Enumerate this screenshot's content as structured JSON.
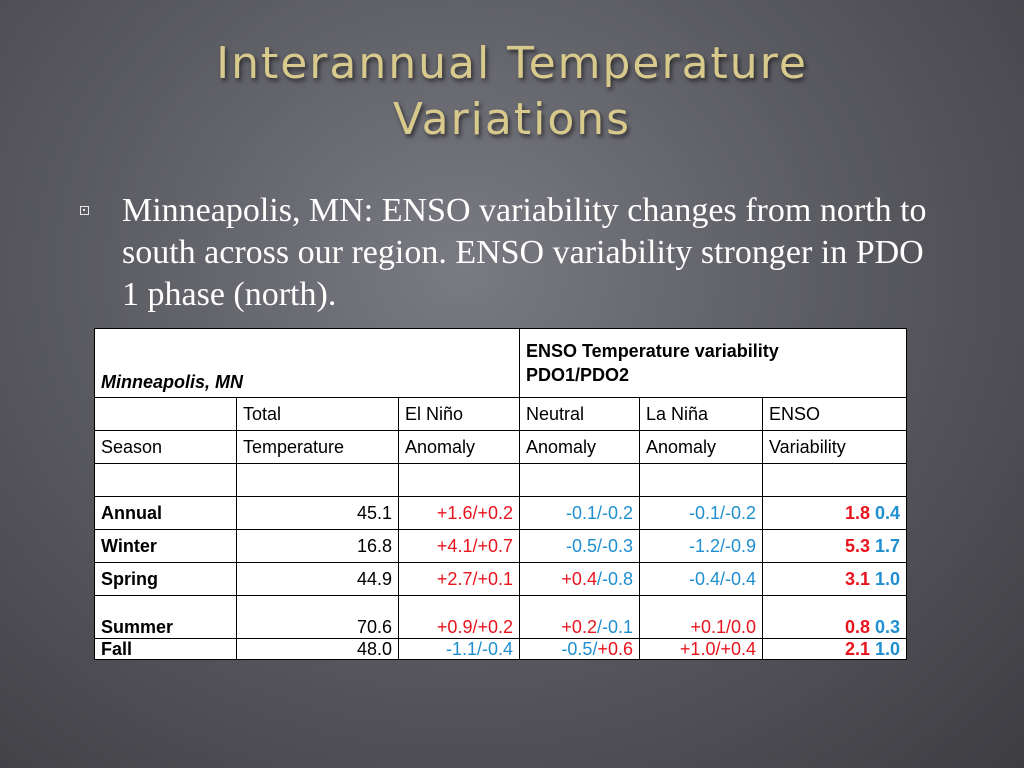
{
  "slide": {
    "title_line1": "Interannual Temperature",
    "title_line2": "Variations",
    "bullet": "Minneapolis, MN: ENSO variability changes from north to south across our region. ENSO variability stronger in PDO 1 phase (north)."
  },
  "table": {
    "location": "Minneapolis, MN",
    "header_title_line1": "ENSO Temperature variability",
    "header_title_line2": "PDO1/PDO2",
    "col_row1": [
      "",
      "Total",
      "El Niño",
      "Neutral",
      "La Niña",
      "ENSO"
    ],
    "col_row2": [
      "Season",
      "Temperature",
      "Anomaly",
      "Anomaly",
      "Anomaly",
      "Variability"
    ],
    "rows": [
      {
        "season": "Annual",
        "total": "45.1",
        "elnino": [
          {
            "t": "+1.6/+0.2",
            "c": "red"
          }
        ],
        "neutral": [
          {
            "t": "-0.1/-0.2",
            "c": "blue"
          }
        ],
        "lanina": [
          {
            "t": "-0.1/-0.2",
            "c": "blue"
          }
        ],
        "enso1": "1.8",
        "enso2": "0.4"
      },
      {
        "season": "Winter",
        "total": "16.8",
        "elnino": [
          {
            "t": "+4.1/+0.7",
            "c": "red"
          }
        ],
        "neutral": [
          {
            "t": "-0.5/-0.3",
            "c": "blue"
          }
        ],
        "lanina": [
          {
            "t": "-1.2/-0.9",
            "c": "blue"
          }
        ],
        "enso1": "5.3",
        "enso2": "1.7"
      },
      {
        "season": "Spring",
        "total": "44.9",
        "elnino": [
          {
            "t": "+2.7/+0.1",
            "c": "red"
          }
        ],
        "neutral": [
          {
            "t": "+0.4",
            "c": "red"
          },
          {
            "t": "/-0.8",
            "c": "blue"
          }
        ],
        "lanina": [
          {
            "t": "-0.4/-0.4",
            "c": "blue"
          }
        ],
        "enso1": "3.1",
        "enso2": "1.0"
      },
      {
        "season": "Summer",
        "total": "70.6",
        "elnino": [
          {
            "t": "+0.9/+0.2",
            "c": "red"
          }
        ],
        "neutral": [
          {
            "t": "+0.2",
            "c": "red"
          },
          {
            "t": "/-0.1",
            "c": "blue"
          }
        ],
        "lanina": [
          {
            "t": "+0.1/0.0",
            "c": "red"
          }
        ],
        "enso1": "0.8",
        "enso2": "0.3"
      },
      {
        "season": "Fall",
        "total": "48.0",
        "elnino": [
          {
            "t": "-1.1/-0.4",
            "c": "blue"
          }
        ],
        "neutral": [
          {
            "t": "-0.5/",
            "c": "blue"
          },
          {
            "t": "+0.6",
            "c": "red"
          }
        ],
        "lanina": [
          {
            "t": "+1.0/+0.4",
            "c": "red"
          }
        ],
        "enso1": "2.1",
        "enso2": "1.0"
      }
    ]
  },
  "colors": {
    "title": "#d8c98c",
    "red": "#e8141e",
    "blue": "#1f8fd0"
  },
  "icons": {
    "bullet": "square-bullet-icon"
  }
}
